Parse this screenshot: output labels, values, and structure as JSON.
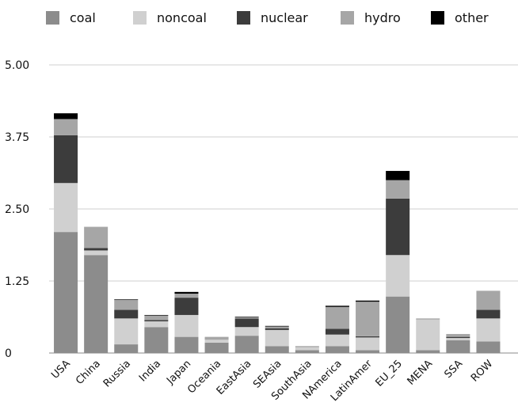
{
  "chart_data": {
    "type": "bar",
    "stacked": true,
    "categories": [
      "USA",
      "China",
      "Russia",
      "India",
      "Japan",
      "Oceania",
      "EastAsia",
      "SEAsia",
      "SouthAsia",
      "NAmerica",
      "LatinAmer",
      "EU_25",
      "MENA",
      "SSA",
      "ROW"
    ],
    "series": [
      {
        "name": "coal",
        "color": "#8c8c8c",
        "values": [
          2.1,
          1.7,
          0.15,
          0.45,
          0.28,
          0.18,
          0.3,
          0.12,
          0.05,
          0.12,
          0.05,
          0.98,
          0.05,
          0.22,
          0.2
        ]
      },
      {
        "name": "noncoal",
        "color": "#d0d0d0",
        "values": [
          0.85,
          0.08,
          0.45,
          0.1,
          0.38,
          0.05,
          0.15,
          0.28,
          0.05,
          0.2,
          0.22,
          0.72,
          0.53,
          0.04,
          0.4
        ]
      },
      {
        "name": "nuclear",
        "color": "#3c3c3c",
        "values": [
          0.83,
          0.04,
          0.15,
          0.02,
          0.3,
          0.0,
          0.15,
          0.03,
          0.0,
          0.1,
          0.02,
          0.98,
          0.0,
          0.02,
          0.15
        ]
      },
      {
        "name": "hydro",
        "color": "#a6a6a6",
        "values": [
          0.28,
          0.37,
          0.17,
          0.08,
          0.07,
          0.05,
          0.02,
          0.03,
          0.02,
          0.38,
          0.6,
          0.32,
          0.02,
          0.05,
          0.33
        ]
      },
      {
        "name": "other",
        "color": "#000000",
        "values": [
          0.1,
          0.0,
          0.01,
          0.01,
          0.03,
          0.0,
          0.01,
          0.01,
          0.0,
          0.02,
          0.02,
          0.16,
          0.0,
          0.0,
          0.0
        ]
      }
    ],
    "ylim": [
      0,
      5
    ],
    "yticks": [
      "0",
      "1.25",
      "2.50",
      "3.75",
      "5.00"
    ],
    "ytick_values": [
      0,
      1.25,
      2.5,
      3.75,
      5
    ],
    "grid": true,
    "legend_position": "top",
    "title": "",
    "xlabel": "",
    "ylabel": ""
  }
}
